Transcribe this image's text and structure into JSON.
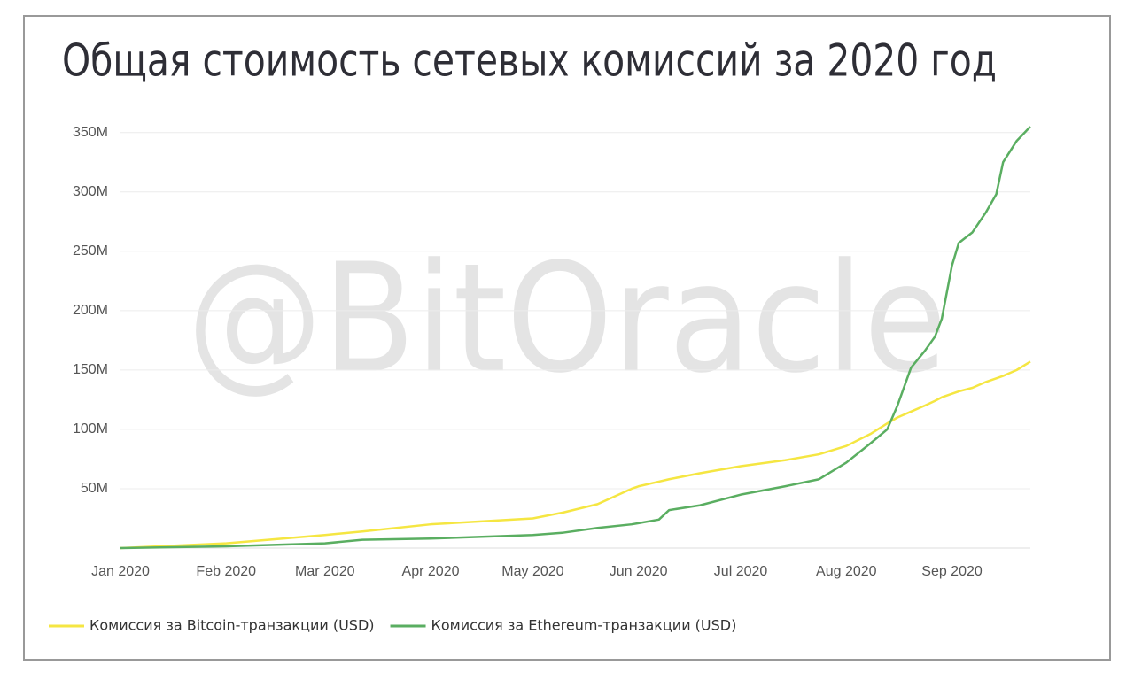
{
  "chart_data": {
    "type": "line",
    "title": "Общая стоимость сетевых комиссий за 2020 год",
    "watermark": "@BitOracle",
    "x": [
      0,
      31,
      60,
      71,
      91,
      121,
      130,
      140,
      150,
      152,
      158,
      161,
      170,
      182,
      195,
      205,
      213,
      220,
      225,
      228,
      232,
      236,
      239,
      241,
      244,
      246,
      250,
      254,
      257,
      259,
      263,
      267
    ],
    "series": [
      {
        "name": "Комиссия за Bitcoin-транзакции (USD)",
        "color": "#f5e642",
        "values": [
          0,
          4,
          11,
          14,
          20,
          25,
          30,
          37,
          50,
          52,
          56,
          58,
          63,
          69,
          74,
          79,
          86,
          96,
          105,
          110,
          115,
          120,
          124,
          127,
          130,
          132,
          135,
          140,
          143,
          145,
          150,
          157
        ]
      },
      {
        "name": "Комиссия за Ethereum-транзакции (USD)",
        "color": "#5aae61",
        "values": [
          0,
          1.5,
          4,
          7,
          8,
          11,
          13,
          17,
          20,
          21,
          24,
          32,
          36,
          45,
          52,
          58,
          72,
          88,
          100,
          120,
          152,
          166,
          178,
          193,
          238,
          257,
          266,
          283,
          298,
          325,
          343,
          355
        ]
      }
    ],
    "xlim": [
      0,
      267
    ],
    "xticks": [
      {
        "value": 0,
        "label": "Jan 2020"
      },
      {
        "value": 31,
        "label": "Feb 2020"
      },
      {
        "value": 60,
        "label": "Mar 2020"
      },
      {
        "value": 91,
        "label": "Apr 2020"
      },
      {
        "value": 121,
        "label": "May 2020"
      },
      {
        "value": 152,
        "label": "Jun 2020"
      },
      {
        "value": 182,
        "label": "Jul 2020"
      },
      {
        "value": 213,
        "label": "Aug 2020"
      },
      {
        "value": 244,
        "label": "Sep 2020"
      }
    ],
    "ylim": [
      0,
      355
    ],
    "yticks": [
      {
        "value": 50,
        "label": "50M"
      },
      {
        "value": 100,
        "label": "100M"
      },
      {
        "value": 150,
        "label": "150M"
      },
      {
        "value": 200,
        "label": "200M"
      },
      {
        "value": 250,
        "label": "250M"
      },
      {
        "value": 300,
        "label": "300M"
      },
      {
        "value": 350,
        "label": "350M"
      }
    ],
    "grid": true,
    "legend": "bottom"
  }
}
